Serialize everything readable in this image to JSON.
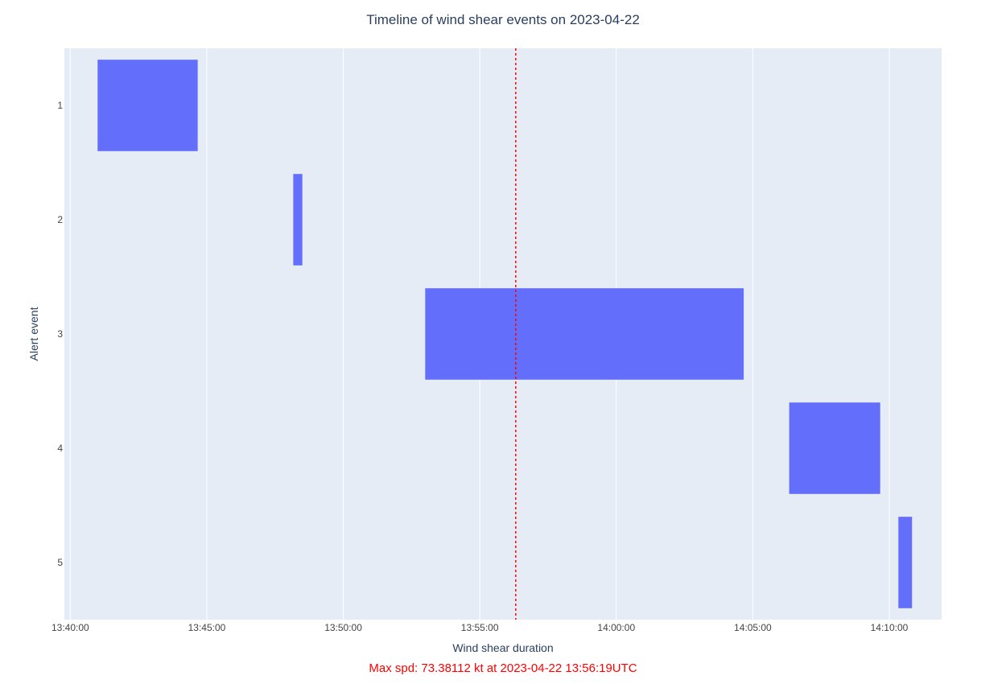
{
  "chart_data": {
    "type": "bar",
    "orientation": "horizontal-timeline",
    "title": "Timeline of wind shear events on 2023-04-22",
    "xlabel": "Wind shear duration",
    "ylabel": "Alert event",
    "x_ticks": [
      "13:40:00",
      "13:45:00",
      "13:50:00",
      "13:55:00",
      "14:00:00",
      "14:05:00",
      "14:10:00"
    ],
    "xlim": [
      "13:39:47",
      "14:11:55"
    ],
    "categories": [
      "1",
      "2",
      "3",
      "4",
      "5"
    ],
    "y_order": "top-to-bottom",
    "events": [
      {
        "event": "1",
        "start": "13:41:00",
        "end": "13:44:40"
      },
      {
        "event": "2",
        "start": "13:48:10",
        "end": "13:48:30"
      },
      {
        "event": "3",
        "start": "13:53:00",
        "end": "14:04:40"
      },
      {
        "event": "4",
        "start": "14:06:20",
        "end": "14:09:40"
      },
      {
        "event": "5",
        "start": "14:10:20",
        "end": "14:10:50"
      }
    ],
    "bar_color": "#636efa",
    "plot_background": "#e5ecf6",
    "grid": true,
    "vline": {
      "x": "13:56:19",
      "color": "#ff0000",
      "style": "dotted"
    },
    "annotation": {
      "text": "Max spd: 73.38112 kt at 2023-04-22 13:56:19UTC",
      "color": "#ff0000"
    }
  }
}
